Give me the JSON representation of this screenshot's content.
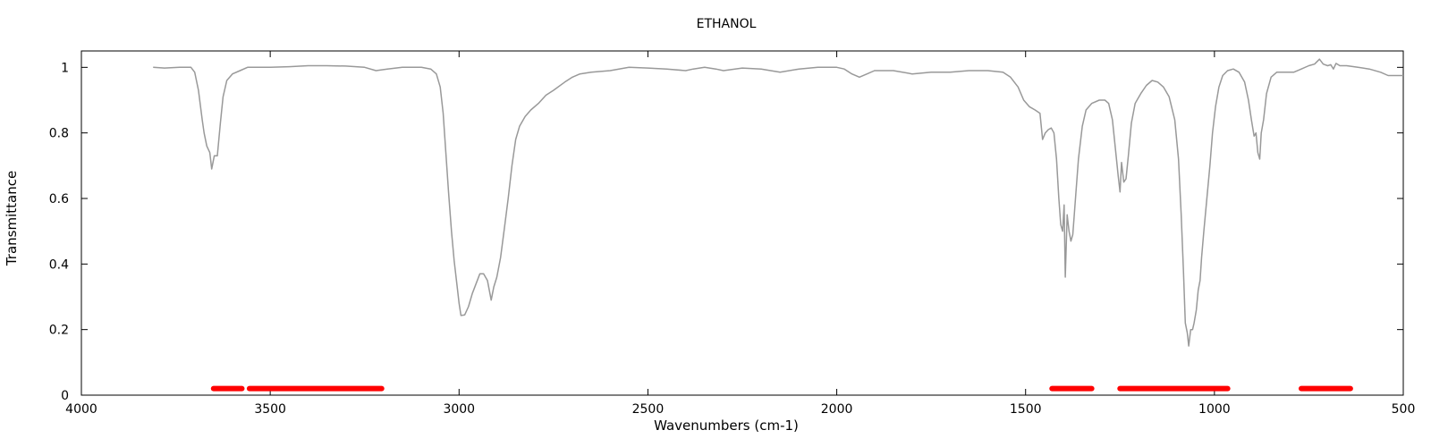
{
  "chart_data": {
    "type": "line",
    "title": "ETHANOL",
    "xlabel": "Wavenumbers (cm-1)",
    "ylabel": "Transmittance",
    "xlim": [
      4000,
      500
    ],
    "ylim": [
      0,
      1.05
    ],
    "x_reversed": true,
    "grid": false,
    "legend": "none",
    "x_ticks": [
      4000,
      3500,
      3000,
      2500,
      2000,
      1500,
      1000,
      500
    ],
    "y_ticks": [
      0,
      0.2,
      0.4,
      0.6,
      0.8,
      1
    ],
    "x_tick_labels": [
      "4000",
      "3500",
      "3000",
      "2500",
      "2000",
      "1500",
      "1000",
      "500"
    ],
    "y_tick_labels": [
      "0",
      "0.2",
      "0.4",
      "0.6",
      "0.8",
      "1"
    ],
    "series": [
      {
        "color": "#999999",
        "points": [
          [
            3810,
            1.0
          ],
          [
            3780,
            0.998
          ],
          [
            3740,
            1.0
          ],
          [
            3710,
            1.0
          ],
          [
            3700,
            0.985
          ],
          [
            3690,
            0.93
          ],
          [
            3680,
            0.84
          ],
          [
            3675,
            0.8
          ],
          [
            3668,
            0.76
          ],
          [
            3660,
            0.74
          ],
          [
            3655,
            0.69
          ],
          [
            3648,
            0.73
          ],
          [
            3640,
            0.73
          ],
          [
            3632,
            0.83
          ],
          [
            3625,
            0.91
          ],
          [
            3615,
            0.96
          ],
          [
            3600,
            0.98
          ],
          [
            3580,
            0.99
          ],
          [
            3560,
            1.0
          ],
          [
            3500,
            1.0
          ],
          [
            3450,
            1.002
          ],
          [
            3400,
            1.005
          ],
          [
            3350,
            1.005
          ],
          [
            3300,
            1.004
          ],
          [
            3250,
            1.0
          ],
          [
            3220,
            0.99
          ],
          [
            3190,
            0.995
          ],
          [
            3150,
            1.0
          ],
          [
            3100,
            1.0
          ],
          [
            3075,
            0.995
          ],
          [
            3060,
            0.98
          ],
          [
            3050,
            0.94
          ],
          [
            3042,
            0.86
          ],
          [
            3035,
            0.74
          ],
          [
            3028,
            0.62
          ],
          [
            3020,
            0.5
          ],
          [
            3013,
            0.41
          ],
          [
            3005,
            0.33
          ],
          [
            3000,
            0.28
          ],
          [
            2995,
            0.243
          ],
          [
            2985,
            0.245
          ],
          [
            2975,
            0.27
          ],
          [
            2965,
            0.31
          ],
          [
            2955,
            0.34
          ],
          [
            2945,
            0.37
          ],
          [
            2935,
            0.37
          ],
          [
            2925,
            0.35
          ],
          [
            2915,
            0.29
          ],
          [
            2908,
            0.33
          ],
          [
            2900,
            0.36
          ],
          [
            2890,
            0.42
          ],
          [
            2880,
            0.51
          ],
          [
            2870,
            0.6
          ],
          [
            2860,
            0.7
          ],
          [
            2850,
            0.78
          ],
          [
            2840,
            0.82
          ],
          [
            2825,
            0.85
          ],
          [
            2810,
            0.87
          ],
          [
            2790,
            0.89
          ],
          [
            2770,
            0.915
          ],
          [
            2750,
            0.93
          ],
          [
            2720,
            0.955
          ],
          [
            2700,
            0.97
          ],
          [
            2680,
            0.98
          ],
          [
            2650,
            0.985
          ],
          [
            2600,
            0.99
          ],
          [
            2550,
            1.0
          ],
          [
            2500,
            0.998
          ],
          [
            2450,
            0.995
          ],
          [
            2400,
            0.99
          ],
          [
            2380,
            0.995
          ],
          [
            2350,
            1.0
          ],
          [
            2320,
            0.995
          ],
          [
            2300,
            0.99
          ],
          [
            2250,
            0.998
          ],
          [
            2200,
            0.995
          ],
          [
            2150,
            0.985
          ],
          [
            2100,
            0.995
          ],
          [
            2050,
            1.0
          ],
          [
            2000,
            1.0
          ],
          [
            1980,
            0.995
          ],
          [
            1960,
            0.98
          ],
          [
            1940,
            0.97
          ],
          [
            1920,
            0.98
          ],
          [
            1900,
            0.99
          ],
          [
            1850,
            0.99
          ],
          [
            1800,
            0.98
          ],
          [
            1750,
            0.985
          ],
          [
            1700,
            0.985
          ],
          [
            1650,
            0.99
          ],
          [
            1600,
            0.99
          ],
          [
            1560,
            0.985
          ],
          [
            1540,
            0.97
          ],
          [
            1520,
            0.94
          ],
          [
            1505,
            0.9
          ],
          [
            1490,
            0.88
          ],
          [
            1475,
            0.87
          ],
          [
            1462,
            0.86
          ],
          [
            1455,
            0.78
          ],
          [
            1448,
            0.8
          ],
          [
            1440,
            0.81
          ],
          [
            1432,
            0.815
          ],
          [
            1425,
            0.8
          ],
          [
            1418,
            0.72
          ],
          [
            1412,
            0.6
          ],
          [
            1407,
            0.52
          ],
          [
            1402,
            0.5
          ],
          [
            1398,
            0.58
          ],
          [
            1395,
            0.36
          ],
          [
            1390,
            0.55
          ],
          [
            1385,
            0.5
          ],
          [
            1380,
            0.47
          ],
          [
            1375,
            0.49
          ],
          [
            1368,
            0.6
          ],
          [
            1360,
            0.72
          ],
          [
            1350,
            0.82
          ],
          [
            1340,
            0.87
          ],
          [
            1325,
            0.89
          ],
          [
            1305,
            0.9
          ],
          [
            1290,
            0.9
          ],
          [
            1280,
            0.89
          ],
          [
            1270,
            0.84
          ],
          [
            1262,
            0.75
          ],
          [
            1255,
            0.67
          ],
          [
            1250,
            0.62
          ],
          [
            1246,
            0.71
          ],
          [
            1240,
            0.65
          ],
          [
            1234,
            0.66
          ],
          [
            1228,
            0.73
          ],
          [
            1220,
            0.83
          ],
          [
            1210,
            0.89
          ],
          [
            1195,
            0.92
          ],
          [
            1180,
            0.945
          ],
          [
            1165,
            0.96
          ],
          [
            1150,
            0.955
          ],
          [
            1135,
            0.94
          ],
          [
            1120,
            0.91
          ],
          [
            1105,
            0.84
          ],
          [
            1095,
            0.72
          ],
          [
            1088,
            0.55
          ],
          [
            1082,
            0.38
          ],
          [
            1077,
            0.22
          ],
          [
            1072,
            0.19
          ],
          [
            1068,
            0.15
          ],
          [
            1063,
            0.2
          ],
          [
            1058,
            0.2
          ],
          [
            1054,
            0.22
          ],
          [
            1048,
            0.26
          ],
          [
            1043,
            0.32
          ],
          [
            1038,
            0.35
          ],
          [
            1034,
            0.42
          ],
          [
            1028,
            0.5
          ],
          [
            1020,
            0.6
          ],
          [
            1012,
            0.7
          ],
          [
            1005,
            0.8
          ],
          [
            997,
            0.88
          ],
          [
            988,
            0.94
          ],
          [
            978,
            0.975
          ],
          [
            965,
            0.99
          ],
          [
            950,
            0.995
          ],
          [
            935,
            0.985
          ],
          [
            920,
            0.955
          ],
          [
            910,
            0.9
          ],
          [
            902,
            0.84
          ],
          [
            895,
            0.79
          ],
          [
            890,
            0.8
          ],
          [
            885,
            0.74
          ],
          [
            880,
            0.72
          ],
          [
            876,
            0.8
          ],
          [
            870,
            0.84
          ],
          [
            862,
            0.92
          ],
          [
            850,
            0.97
          ],
          [
            835,
            0.985
          ],
          [
            810,
            0.985
          ],
          [
            790,
            0.985
          ],
          [
            770,
            0.995
          ],
          [
            750,
            1.005
          ],
          [
            735,
            1.01
          ],
          [
            722,
            1.025
          ],
          [
            712,
            1.01
          ],
          [
            700,
            1.005
          ],
          [
            692,
            1.008
          ],
          [
            685,
            0.995
          ],
          [
            678,
            1.012
          ],
          [
            668,
            1.005
          ],
          [
            650,
            1.005
          ],
          [
            620,
            1.0
          ],
          [
            590,
            0.995
          ],
          [
            560,
            0.985
          ],
          [
            540,
            0.975
          ],
          [
            520,
            0.975
          ],
          [
            500,
            0.975
          ]
        ]
      }
    ],
    "highlight_bands": {
      "color": "#ff0000",
      "y": 0.02,
      "ranges": [
        [
          3650,
          3575
        ],
        [
          3555,
          3205
        ],
        [
          1430,
          1325
        ],
        [
          1250,
          965
        ],
        [
          770,
          640
        ]
      ]
    }
  }
}
